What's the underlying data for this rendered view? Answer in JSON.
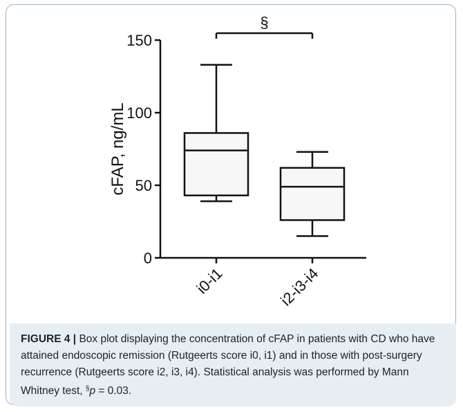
{
  "chart_data": {
    "type": "box",
    "ylabel": "cFAP, ng/mL",
    "ylim": [
      0,
      150
    ],
    "yticks": [
      0,
      50,
      100,
      150
    ],
    "categories": [
      "i0-i1",
      "i2-i3-i4"
    ],
    "boxes": [
      {
        "category": "i0-i1",
        "whisker_low": 39,
        "q1": 43,
        "median": 74,
        "q3": 86,
        "whisker_high": 133
      },
      {
        "category": "i2-i3-i4",
        "whisker_low": 15,
        "q1": 26,
        "median": 49,
        "q3": 62,
        "whisker_high": 73
      }
    ],
    "significance": {
      "between": [
        "i0-i1",
        "i2-i3-i4"
      ],
      "symbol": "§"
    },
    "grid": false,
    "box_fill": "#f7f7f7",
    "line_color": "#111111"
  },
  "caption": {
    "label": "FIGURE 4 |",
    "text_before": " Box plot displaying the concentration of cFAP in patients with CD who have attained endoscopic remission (Rutgeerts score i0, i1) and in those with post-surgery recurrence (Rutgeerts score i2, i3, i4). Statistical analysis was performed by Mann Whitney test, ",
    "sup": "§",
    "p_italic": "p",
    "text_after": " = 0.03."
  }
}
